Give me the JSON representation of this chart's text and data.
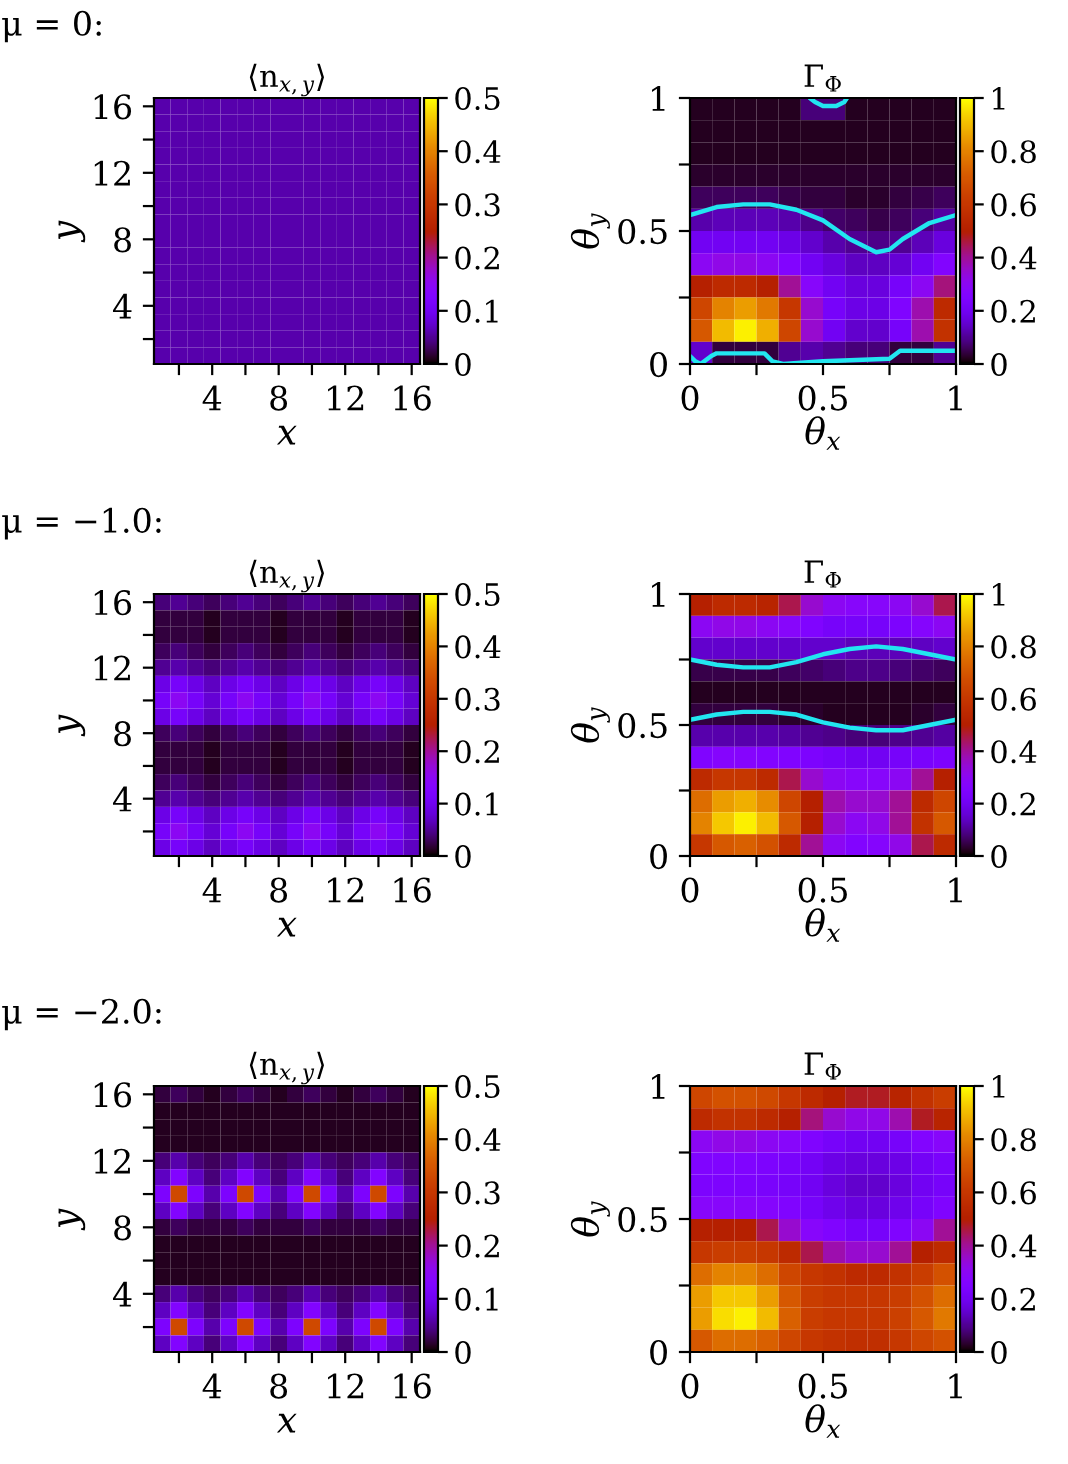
{
  "chart_data": [
    {
      "type": "heatmap",
      "title": "⟨n$_{x,y}$⟩",
      "xlabel": "x",
      "ylabel": "y",
      "annotations": [
        "μ = 0:"
      ],
      "xlim": [
        0.5,
        16.5
      ],
      "ylim": [
        0.5,
        16.5
      ],
      "xticks": [
        {
          "value": 2,
          "label": null
        },
        4,
        {
          "value": 6,
          "label": null
        },
        8,
        {
          "value": 10,
          "label": null
        },
        12,
        {
          "value": 14,
          "label": null
        },
        16
      ],
      "yticks": [
        {
          "value": 2,
          "label": null
        },
        4,
        {
          "value": 6,
          "label": null
        },
        8,
        {
          "value": 10,
          "label": null
        },
        12,
        {
          "value": 14,
          "label": null
        },
        16
      ],
      "clim": [
        0,
        0.5
      ],
      "cticks": [
        0,
        0.1,
        0.2,
        0.3,
        0.4,
        0.5
      ],
      "cells": [
        [
          0.06,
          0.06,
          0.06,
          0.06,
          0.06,
          0.06,
          0.06,
          0.06,
          0.06,
          0.06,
          0.06,
          0.06,
          0.06,
          0.06,
          0.06,
          0.06
        ],
        [
          0.06,
          0.06,
          0.06,
          0.06,
          0.06,
          0.06,
          0.06,
          0.06,
          0.06,
          0.06,
          0.06,
          0.06,
          0.06,
          0.06,
          0.06,
          0.06
        ],
        [
          0.06,
          0.06,
          0.06,
          0.06,
          0.06,
          0.06,
          0.06,
          0.06,
          0.06,
          0.06,
          0.06,
          0.06,
          0.06,
          0.06,
          0.06,
          0.06
        ],
        [
          0.06,
          0.06,
          0.06,
          0.06,
          0.06,
          0.06,
          0.06,
          0.06,
          0.06,
          0.06,
          0.06,
          0.06,
          0.06,
          0.06,
          0.06,
          0.06
        ],
        [
          0.06,
          0.06,
          0.06,
          0.06,
          0.06,
          0.06,
          0.06,
          0.06,
          0.06,
          0.06,
          0.06,
          0.06,
          0.06,
          0.06,
          0.06,
          0.06
        ],
        [
          0.06,
          0.06,
          0.06,
          0.06,
          0.06,
          0.06,
          0.06,
          0.06,
          0.06,
          0.06,
          0.06,
          0.06,
          0.06,
          0.06,
          0.06,
          0.06
        ],
        [
          0.06,
          0.06,
          0.06,
          0.06,
          0.06,
          0.06,
          0.06,
          0.06,
          0.06,
          0.06,
          0.06,
          0.06,
          0.06,
          0.06,
          0.06,
          0.06
        ],
        [
          0.06,
          0.06,
          0.06,
          0.06,
          0.06,
          0.06,
          0.06,
          0.06,
          0.06,
          0.06,
          0.06,
          0.06,
          0.06,
          0.06,
          0.06,
          0.06
        ],
        [
          0.06,
          0.06,
          0.06,
          0.06,
          0.06,
          0.06,
          0.06,
          0.06,
          0.06,
          0.06,
          0.06,
          0.06,
          0.06,
          0.06,
          0.06,
          0.06
        ],
        [
          0.06,
          0.06,
          0.06,
          0.06,
          0.06,
          0.06,
          0.06,
          0.06,
          0.06,
          0.06,
          0.06,
          0.06,
          0.06,
          0.06,
          0.06,
          0.06
        ],
        [
          0.06,
          0.06,
          0.06,
          0.06,
          0.06,
          0.06,
          0.06,
          0.06,
          0.06,
          0.06,
          0.06,
          0.06,
          0.06,
          0.06,
          0.06,
          0.06
        ],
        [
          0.06,
          0.06,
          0.06,
          0.06,
          0.06,
          0.06,
          0.06,
          0.06,
          0.06,
          0.06,
          0.06,
          0.06,
          0.06,
          0.06,
          0.06,
          0.06
        ],
        [
          0.06,
          0.06,
          0.06,
          0.06,
          0.06,
          0.06,
          0.06,
          0.06,
          0.06,
          0.06,
          0.06,
          0.06,
          0.06,
          0.06,
          0.06,
          0.06
        ],
        [
          0.06,
          0.06,
          0.06,
          0.06,
          0.06,
          0.06,
          0.06,
          0.06,
          0.06,
          0.06,
          0.06,
          0.06,
          0.06,
          0.06,
          0.06,
          0.06
        ],
        [
          0.06,
          0.06,
          0.06,
          0.06,
          0.06,
          0.06,
          0.06,
          0.06,
          0.06,
          0.06,
          0.06,
          0.06,
          0.06,
          0.06,
          0.06,
          0.06
        ],
        [
          0.06,
          0.06,
          0.06,
          0.06,
          0.06,
          0.06,
          0.06,
          0.06,
          0.06,
          0.06,
          0.06,
          0.06,
          0.06,
          0.06,
          0.06,
          0.06
        ]
      ]
    },
    {
      "type": "heatmap",
      "title": "Γ$_{Φ}$",
      "xlabel": "θ$_{x}$",
      "ylabel": "θ$_{y}$",
      "xlim": [
        0,
        1
      ],
      "ylim": [
        0,
        1
      ],
      "xticks": [
        0,
        {
          "value": 0.25,
          "label": null
        },
        0.5,
        {
          "value": 0.75,
          "label": null
        },
        1
      ],
      "yticks": [
        0,
        {
          "value": 0.25,
          "label": null
        },
        0.5,
        {
          "value": 0.75,
          "label": null
        },
        1
      ],
      "clim": [
        0,
        1
      ],
      "cticks": [
        0,
        0.2,
        0.4,
        0.6,
        0.8,
        1
      ],
      "cells": [
        [
          0.02,
          0.02,
          0.02,
          0.02,
          0.02,
          0.08,
          0.08,
          0.02,
          0.02,
          0.02,
          0.02,
          0.02
        ],
        [
          0.02,
          0.02,
          0.02,
          0.02,
          0.02,
          0.02,
          0.02,
          0.02,
          0.02,
          0.02,
          0.02,
          0.02
        ],
        [
          0.02,
          0.02,
          0.02,
          0.02,
          0.02,
          0.02,
          0.02,
          0.02,
          0.02,
          0.02,
          0.02,
          0.02
        ],
        [
          0.03,
          0.03,
          0.03,
          0.03,
          0.03,
          0.03,
          0.03,
          0.03,
          0.03,
          0.03,
          0.03,
          0.03
        ],
        [
          0.06,
          0.06,
          0.06,
          0.06,
          0.05,
          0.04,
          0.04,
          0.03,
          0.03,
          0.04,
          0.05,
          0.06
        ],
        [
          0.12,
          0.13,
          0.13,
          0.13,
          0.12,
          0.09,
          0.07,
          0.06,
          0.05,
          0.06,
          0.08,
          0.11
        ],
        [
          0.2,
          0.2,
          0.2,
          0.2,
          0.18,
          0.15,
          0.12,
          0.1,
          0.09,
          0.1,
          0.13,
          0.17
        ],
        [
          0.3,
          0.32,
          0.32,
          0.3,
          0.26,
          0.2,
          0.17,
          0.14,
          0.14,
          0.16,
          0.2,
          0.26
        ],
        [
          0.5,
          0.55,
          0.55,
          0.5,
          0.4,
          0.28,
          0.2,
          0.17,
          0.17,
          0.22,
          0.3,
          0.42
        ],
        [
          0.65,
          0.8,
          0.85,
          0.78,
          0.6,
          0.35,
          0.22,
          0.18,
          0.18,
          0.25,
          0.38,
          0.55
        ],
        [
          0.7,
          0.9,
          0.98,
          0.88,
          0.65,
          0.35,
          0.2,
          0.15,
          0.15,
          0.22,
          0.38,
          0.58
        ],
        [
          0.15,
          0.04,
          0.04,
          0.04,
          0.1,
          0.12,
          0.1,
          0.08,
          0.08,
          0.04,
          0.04,
          0.1
        ]
      ],
      "series": [
        {
          "type": "line",
          "color": "#22e6f0",
          "x": [
            0,
            0.1,
            0.2,
            0.3,
            0.4,
            0.5,
            0.6,
            0.7,
            0.75,
            0.8,
            0.9,
            1
          ],
          "values": [
            0.56,
            0.59,
            0.6,
            0.6,
            0.58,
            0.54,
            0.47,
            0.42,
            0.43,
            0.47,
            0.53,
            0.56
          ]
        },
        {
          "type": "line",
          "color": "#22e6f0",
          "x": [
            0.45,
            0.47,
            0.5,
            0.55,
            0.58,
            0.59
          ],
          "values": [
            1,
            0.985,
            0.97,
            0.97,
            0.985,
            1
          ]
        },
        {
          "type": "line",
          "color": "#22e6f0",
          "x": [
            0,
            0.02,
            0.04,
            0.08,
            0.1,
            0.28,
            0.31,
            0.35,
            0.5,
            0.75,
            0.79,
            1
          ],
          "values": [
            0.03,
            0.01,
            0.0,
            0.03,
            0.04,
            0.04,
            0.01,
            0.0,
            0.01,
            0.02,
            0.05,
            0.05
          ]
        }
      ]
    },
    {
      "type": "heatmap",
      "title": "⟨n$_{x,y}$⟩",
      "xlabel": "x",
      "ylabel": "y",
      "annotations": [
        "μ = −1.0:"
      ],
      "xlim": [
        0.5,
        16.5
      ],
      "ylim": [
        0.5,
        16.5
      ],
      "xticks": [
        {
          "value": 2,
          "label": null
        },
        4,
        {
          "value": 6,
          "label": null
        },
        8,
        {
          "value": 10,
          "label": null
        },
        12,
        {
          "value": 14,
          "label": null
        },
        16
      ],
      "yticks": [
        {
          "value": 2,
          "label": null
        },
        4,
        {
          "value": 6,
          "label": null
        },
        8,
        {
          "value": 10,
          "label": null
        },
        12,
        {
          "value": 14,
          "label": null
        },
        16
      ],
      "clim": [
        0,
        0.5
      ],
      "cticks": [
        0,
        0.1,
        0.2,
        0.3,
        0.4,
        0.5
      ],
      "cells": [
        [
          0.04,
          0.05,
          0.04,
          0.03,
          0.04,
          0.05,
          0.04,
          0.03,
          0.04,
          0.05,
          0.04,
          0.03,
          0.04,
          0.05,
          0.04,
          0.03
        ],
        [
          0.02,
          0.02,
          0.02,
          0.01,
          0.02,
          0.02,
          0.02,
          0.01,
          0.02,
          0.02,
          0.02,
          0.01,
          0.02,
          0.02,
          0.02,
          0.01
        ],
        [
          0.02,
          0.02,
          0.02,
          0.01,
          0.02,
          0.02,
          0.02,
          0.01,
          0.02,
          0.02,
          0.02,
          0.01,
          0.02,
          0.02,
          0.02,
          0.01
        ],
        [
          0.03,
          0.04,
          0.03,
          0.02,
          0.03,
          0.04,
          0.03,
          0.02,
          0.03,
          0.04,
          0.03,
          0.02,
          0.03,
          0.04,
          0.03,
          0.02
        ],
        [
          0.05,
          0.06,
          0.05,
          0.04,
          0.05,
          0.06,
          0.05,
          0.04,
          0.05,
          0.06,
          0.05,
          0.04,
          0.05,
          0.06,
          0.05,
          0.04
        ],
        [
          0.09,
          0.11,
          0.09,
          0.07,
          0.09,
          0.11,
          0.09,
          0.07,
          0.09,
          0.11,
          0.09,
          0.07,
          0.09,
          0.11,
          0.09,
          0.07
        ],
        [
          0.11,
          0.15,
          0.11,
          0.08,
          0.11,
          0.15,
          0.11,
          0.08,
          0.11,
          0.15,
          0.11,
          0.08,
          0.11,
          0.15,
          0.11,
          0.08
        ],
        [
          0.09,
          0.11,
          0.09,
          0.07,
          0.09,
          0.11,
          0.09,
          0.07,
          0.09,
          0.11,
          0.09,
          0.07,
          0.09,
          0.11,
          0.09,
          0.07
        ],
        [
          0.03,
          0.04,
          0.03,
          0.02,
          0.03,
          0.04,
          0.03,
          0.02,
          0.03,
          0.04,
          0.03,
          0.02,
          0.03,
          0.04,
          0.03,
          0.02
        ],
        [
          0.02,
          0.02,
          0.02,
          0.01,
          0.02,
          0.02,
          0.02,
          0.01,
          0.02,
          0.02,
          0.02,
          0.01,
          0.02,
          0.02,
          0.02,
          0.01
        ],
        [
          0.02,
          0.02,
          0.02,
          0.01,
          0.02,
          0.02,
          0.02,
          0.01,
          0.02,
          0.02,
          0.02,
          0.01,
          0.02,
          0.02,
          0.02,
          0.01
        ],
        [
          0.03,
          0.04,
          0.03,
          0.02,
          0.03,
          0.04,
          0.03,
          0.02,
          0.03,
          0.04,
          0.03,
          0.02,
          0.03,
          0.04,
          0.03,
          0.02
        ],
        [
          0.05,
          0.06,
          0.05,
          0.04,
          0.05,
          0.06,
          0.05,
          0.04,
          0.05,
          0.06,
          0.05,
          0.04,
          0.05,
          0.06,
          0.05,
          0.04
        ],
        [
          0.09,
          0.11,
          0.09,
          0.07,
          0.09,
          0.11,
          0.09,
          0.07,
          0.09,
          0.11,
          0.09,
          0.07,
          0.09,
          0.11,
          0.09,
          0.07
        ],
        [
          0.11,
          0.15,
          0.11,
          0.08,
          0.11,
          0.15,
          0.11,
          0.08,
          0.11,
          0.15,
          0.11,
          0.08,
          0.11,
          0.15,
          0.11,
          0.08
        ],
        [
          0.09,
          0.11,
          0.09,
          0.07,
          0.09,
          0.11,
          0.09,
          0.07,
          0.09,
          0.11,
          0.09,
          0.07,
          0.09,
          0.11,
          0.09,
          0.07
        ]
      ]
    },
    {
      "type": "heatmap",
      "title": "Γ$_{Φ}$",
      "xlabel": "θ$_{x}$",
      "ylabel": "θ$_{y}$",
      "xlim": [
        0,
        1
      ],
      "ylim": [
        0,
        1
      ],
      "xticks": [
        0,
        {
          "value": 0.25,
          "label": null
        },
        0.5,
        {
          "value": 0.75,
          "label": null
        },
        1
      ],
      "yticks": [
        0,
        {
          "value": 0.25,
          "label": null
        },
        0.5,
        {
          "value": 0.75,
          "label": null
        },
        1
      ],
      "clim": [
        0,
        1
      ],
      "cticks": [
        0,
        0.2,
        0.4,
        0.6,
        0.8,
        1
      ],
      "cells": [
        [
          0.5,
          0.55,
          0.55,
          0.52,
          0.45,
          0.35,
          0.3,
          0.28,
          0.28,
          0.3,
          0.35,
          0.45
        ],
        [
          0.3,
          0.32,
          0.32,
          0.3,
          0.28,
          0.25,
          0.22,
          0.22,
          0.22,
          0.24,
          0.27,
          0.3
        ],
        [
          0.15,
          0.15,
          0.15,
          0.15,
          0.15,
          0.15,
          0.15,
          0.13,
          0.13,
          0.13,
          0.14,
          0.15
        ],
        [
          0.05,
          0.05,
          0.05,
          0.05,
          0.06,
          0.07,
          0.08,
          0.09,
          0.09,
          0.08,
          0.07,
          0.06
        ],
        [
          0.02,
          0.02,
          0.02,
          0.02,
          0.02,
          0.02,
          0.02,
          0.02,
          0.02,
          0.02,
          0.02,
          0.02
        ],
        [
          0.04,
          0.04,
          0.04,
          0.04,
          0.03,
          0.03,
          0.02,
          0.02,
          0.02,
          0.02,
          0.03,
          0.04
        ],
        [
          0.12,
          0.12,
          0.12,
          0.12,
          0.11,
          0.1,
          0.09,
          0.08,
          0.08,
          0.09,
          0.1,
          0.11
        ],
        [
          0.25,
          0.27,
          0.27,
          0.26,
          0.25,
          0.24,
          0.22,
          0.2,
          0.2,
          0.22,
          0.23,
          0.24
        ],
        [
          0.55,
          0.6,
          0.6,
          0.55,
          0.45,
          0.35,
          0.3,
          0.28,
          0.28,
          0.3,
          0.4,
          0.5
        ],
        [
          0.75,
          0.85,
          0.88,
          0.82,
          0.65,
          0.5,
          0.38,
          0.35,
          0.35,
          0.4,
          0.55,
          0.65
        ],
        [
          0.8,
          0.92,
          0.98,
          0.9,
          0.7,
          0.5,
          0.35,
          0.3,
          0.32,
          0.4,
          0.58,
          0.7
        ],
        [
          0.6,
          0.7,
          0.72,
          0.68,
          0.55,
          0.4,
          0.3,
          0.26,
          0.27,
          0.32,
          0.45,
          0.55
        ]
      ],
      "series": [
        {
          "type": "line",
          "color": "#22e6f0",
          "x": [
            0,
            0.1,
            0.2,
            0.3,
            0.4,
            0.5,
            0.6,
            0.7,
            0.8,
            0.9,
            1
          ],
          "values": [
            0.75,
            0.73,
            0.72,
            0.72,
            0.74,
            0.77,
            0.79,
            0.8,
            0.79,
            0.77,
            0.75
          ]
        },
        {
          "type": "line",
          "color": "#22e6f0",
          "x": [
            0,
            0.1,
            0.2,
            0.3,
            0.4,
            0.5,
            0.6,
            0.7,
            0.8,
            0.9,
            1
          ],
          "values": [
            0.52,
            0.54,
            0.55,
            0.55,
            0.54,
            0.51,
            0.49,
            0.48,
            0.48,
            0.5,
            0.52
          ]
        }
      ]
    },
    {
      "type": "heatmap",
      "title": "⟨n$_{x,y}$⟩",
      "xlabel": "x",
      "ylabel": "y",
      "annotations": [
        "μ = −2.0:"
      ],
      "xlim": [
        0.5,
        16.5
      ],
      "ylim": [
        0.5,
        16.5
      ],
      "xticks": [
        {
          "value": 2,
          "label": null
        },
        4,
        {
          "value": 6,
          "label": null
        },
        8,
        {
          "value": 10,
          "label": null
        },
        12,
        {
          "value": 14,
          "label": null
        },
        16
      ],
      "yticks": [
        {
          "value": 2,
          "label": null
        },
        4,
        {
          "value": 6,
          "label": null
        },
        8,
        {
          "value": 10,
          "label": null
        },
        12,
        {
          "value": 14,
          "label": null
        },
        16
      ],
      "clim": [
        0,
        0.5
      ],
      "cticks": [
        0,
        0.1,
        0.2,
        0.3,
        0.4,
        0.5
      ],
      "cells": [
        [
          0.02,
          0.03,
          0.02,
          0.01,
          0.02,
          0.03,
          0.02,
          0.01,
          0.02,
          0.03,
          0.02,
          0.01,
          0.02,
          0.03,
          0.02,
          0.01
        ],
        [
          0.01,
          0.01,
          0.01,
          0.01,
          0.01,
          0.01,
          0.01,
          0.01,
          0.01,
          0.01,
          0.01,
          0.01,
          0.01,
          0.01,
          0.01,
          0.01
        ],
        [
          0.01,
          0.01,
          0.01,
          0.01,
          0.01,
          0.01,
          0.01,
          0.01,
          0.01,
          0.01,
          0.01,
          0.01,
          0.01,
          0.01,
          0.01,
          0.01
        ],
        [
          0.01,
          0.01,
          0.01,
          0.01,
          0.01,
          0.01,
          0.01,
          0.01,
          0.01,
          0.01,
          0.01,
          0.01,
          0.01,
          0.01,
          0.01,
          0.01
        ],
        [
          0.04,
          0.06,
          0.04,
          0.03,
          0.04,
          0.06,
          0.04,
          0.03,
          0.04,
          0.06,
          0.04,
          0.03,
          0.04,
          0.06,
          0.04,
          0.03
        ],
        [
          0.07,
          0.13,
          0.07,
          0.04,
          0.07,
          0.13,
          0.07,
          0.04,
          0.07,
          0.13,
          0.07,
          0.04,
          0.07,
          0.13,
          0.07,
          0.04
        ],
        [
          0.12,
          0.33,
          0.12,
          0.06,
          0.12,
          0.33,
          0.12,
          0.06,
          0.12,
          0.33,
          0.12,
          0.06,
          0.12,
          0.33,
          0.12,
          0.06
        ],
        [
          0.07,
          0.13,
          0.07,
          0.04,
          0.07,
          0.13,
          0.07,
          0.04,
          0.07,
          0.13,
          0.07,
          0.04,
          0.07,
          0.13,
          0.07,
          0.04
        ],
        [
          0.02,
          0.03,
          0.02,
          0.02,
          0.02,
          0.03,
          0.02,
          0.02,
          0.02,
          0.03,
          0.02,
          0.02,
          0.02,
          0.03,
          0.02,
          0.02
        ],
        [
          0.01,
          0.01,
          0.01,
          0.01,
          0.01,
          0.01,
          0.01,
          0.01,
          0.01,
          0.01,
          0.01,
          0.01,
          0.01,
          0.01,
          0.01,
          0.01
        ],
        [
          0.01,
          0.01,
          0.01,
          0.01,
          0.01,
          0.01,
          0.01,
          0.01,
          0.01,
          0.01,
          0.01,
          0.01,
          0.01,
          0.01,
          0.01,
          0.01
        ],
        [
          0.01,
          0.01,
          0.01,
          0.01,
          0.01,
          0.01,
          0.01,
          0.01,
          0.01,
          0.01,
          0.01,
          0.01,
          0.01,
          0.01,
          0.01,
          0.01
        ],
        [
          0.04,
          0.06,
          0.04,
          0.03,
          0.04,
          0.06,
          0.04,
          0.03,
          0.04,
          0.06,
          0.04,
          0.03,
          0.04,
          0.06,
          0.04,
          0.03
        ],
        [
          0.07,
          0.13,
          0.07,
          0.04,
          0.07,
          0.13,
          0.07,
          0.04,
          0.07,
          0.13,
          0.07,
          0.04,
          0.07,
          0.13,
          0.07,
          0.04
        ],
        [
          0.12,
          0.33,
          0.12,
          0.06,
          0.12,
          0.33,
          0.12,
          0.06,
          0.12,
          0.33,
          0.12,
          0.06,
          0.12,
          0.33,
          0.12,
          0.06
        ],
        [
          0.07,
          0.13,
          0.07,
          0.04,
          0.07,
          0.13,
          0.07,
          0.04,
          0.07,
          0.13,
          0.07,
          0.04,
          0.07,
          0.13,
          0.07,
          0.04
        ]
      ]
    },
    {
      "type": "heatmap",
      "title": "Γ$_{Φ}$",
      "xlabel": "θ$_{x}$",
      "ylabel": "θ$_{y}$",
      "xlim": [
        0,
        1
      ],
      "ylim": [
        0,
        1
      ],
      "xticks": [
        0,
        {
          "value": 0.25,
          "label": null
        },
        0.5,
        {
          "value": 0.75,
          "label": null
        },
        1
      ],
      "yticks": [
        0,
        {
          "value": 0.25,
          "label": null
        },
        0.5,
        {
          "value": 0.75,
          "label": null
        },
        1
      ],
      "clim": [
        0,
        1
      ],
      "cticks": [
        0,
        0.2,
        0.4,
        0.6,
        0.8,
        1
      ],
      "cells": [
        [
          0.65,
          0.68,
          0.68,
          0.66,
          0.6,
          0.55,
          0.5,
          0.48,
          0.48,
          0.52,
          0.58,
          0.62
        ],
        [
          0.55,
          0.58,
          0.58,
          0.55,
          0.5,
          0.42,
          0.35,
          0.32,
          0.32,
          0.38,
          0.48,
          0.52
        ],
        [
          0.3,
          0.32,
          0.32,
          0.3,
          0.28,
          0.25,
          0.22,
          0.2,
          0.2,
          0.22,
          0.26,
          0.28
        ],
        [
          0.25,
          0.25,
          0.25,
          0.24,
          0.23,
          0.21,
          0.18,
          0.17,
          0.17,
          0.18,
          0.21,
          0.23
        ],
        [
          0.24,
          0.24,
          0.24,
          0.23,
          0.22,
          0.2,
          0.17,
          0.15,
          0.15,
          0.17,
          0.2,
          0.22
        ],
        [
          0.28,
          0.28,
          0.28,
          0.27,
          0.25,
          0.22,
          0.19,
          0.17,
          0.17,
          0.19,
          0.22,
          0.25
        ],
        [
          0.5,
          0.5,
          0.5,
          0.45,
          0.35,
          0.28,
          0.25,
          0.22,
          0.22,
          0.25,
          0.3,
          0.4
        ],
        [
          0.6,
          0.62,
          0.62,
          0.6,
          0.55,
          0.45,
          0.38,
          0.35,
          0.35,
          0.4,
          0.5,
          0.55
        ],
        [
          0.75,
          0.8,
          0.8,
          0.75,
          0.65,
          0.6,
          0.58,
          0.55,
          0.55,
          0.58,
          0.62,
          0.68
        ],
        [
          0.85,
          0.92,
          0.92,
          0.85,
          0.7,
          0.62,
          0.6,
          0.6,
          0.6,
          0.62,
          0.68,
          0.75
        ],
        [
          0.85,
          0.95,
          0.98,
          0.9,
          0.72,
          0.62,
          0.6,
          0.6,
          0.6,
          0.63,
          0.7,
          0.78
        ],
        [
          0.7,
          0.75,
          0.75,
          0.72,
          0.65,
          0.6,
          0.58,
          0.57,
          0.57,
          0.6,
          0.65,
          0.68
        ]
      ]
    }
  ]
}
